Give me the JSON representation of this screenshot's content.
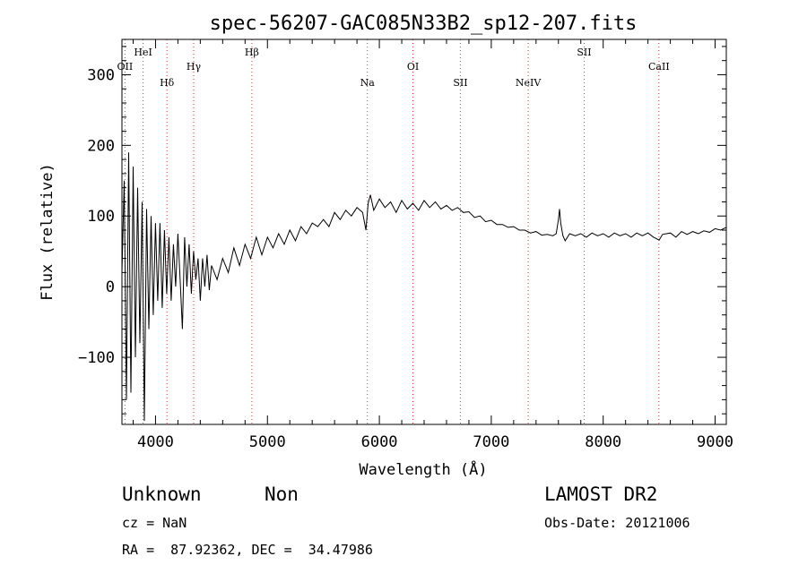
{
  "chart_data": {
    "type": "line",
    "title": "spec-56207-GAC085N33B2_sp12-207.fits",
    "xlabel": "Wavelength (Å)",
    "ylabel": "Flux (relative)",
    "xlim": [
      3700,
      9100
    ],
    "ylim": [
      -195,
      350
    ],
    "xticks": [
      4000,
      5000,
      6000,
      7000,
      8000,
      9000
    ],
    "yticks": [
      -100,
      0,
      100,
      200,
      300
    ],
    "ytick_labels": [
      "−100",
      "0",
      "100",
      "200",
      "300"
    ],
    "grid": false,
    "line_ids": [
      {
        "label": "OII",
        "wavelength": 3727,
        "row": "low-left"
      },
      {
        "label": "HeI",
        "wavelength": 3889,
        "row": "top"
      },
      {
        "label": "Hδ",
        "wavelength": 4102,
        "row": "low"
      },
      {
        "label": "Hγ",
        "wavelength": 4341,
        "row": "mid"
      },
      {
        "label": "Hβ",
        "wavelength": 4861,
        "row": "top"
      },
      {
        "label": "Na",
        "wavelength": 5893,
        "row": "low"
      },
      {
        "label": "OI",
        "wavelength": 6300,
        "row": "mid"
      },
      {
        "label": "SII",
        "wavelength": 6724,
        "row": "low"
      },
      {
        "label": "NeIV",
        "wavelength": 7330,
        "row": "low"
      },
      {
        "label": "SII",
        "wavelength": 7830,
        "row": "top"
      },
      {
        "label": "CaII",
        "wavelength": 8498,
        "row": "mid"
      }
    ],
    "series": [
      {
        "points": [
          [
            3700,
            20
          ],
          [
            3720,
            150
          ],
          [
            3740,
            -160
          ],
          [
            3760,
            190
          ],
          [
            3780,
            -150
          ],
          [
            3800,
            170
          ],
          [
            3820,
            -100
          ],
          [
            3840,
            140
          ],
          [
            3860,
            -80
          ],
          [
            3880,
            120
          ],
          [
            3900,
            -190
          ],
          [
            3920,
            110
          ],
          [
            3940,
            -60
          ],
          [
            3960,
            100
          ],
          [
            3980,
            -40
          ],
          [
            4000,
            90
          ],
          [
            4020,
            -20
          ],
          [
            4040,
            90
          ],
          [
            4060,
            -30
          ],
          [
            4080,
            80
          ],
          [
            4100,
            -10
          ],
          [
            4120,
            70
          ],
          [
            4140,
            -20
          ],
          [
            4160,
            60
          ],
          [
            4180,
            0
          ],
          [
            4200,
            75
          ],
          [
            4220,
            10
          ],
          [
            4240,
            -60
          ],
          [
            4260,
            70
          ],
          [
            4280,
            0
          ],
          [
            4300,
            60
          ],
          [
            4320,
            -10
          ],
          [
            4340,
            50
          ],
          [
            4360,
            10
          ],
          [
            4380,
            40
          ],
          [
            4400,
            -20
          ],
          [
            4420,
            40
          ],
          [
            4440,
            0
          ],
          [
            4460,
            45
          ],
          [
            4480,
            -5
          ],
          [
            4500,
            30
          ],
          [
            4550,
            10
          ],
          [
            4600,
            40
          ],
          [
            4650,
            20
          ],
          [
            4700,
            55
          ],
          [
            4750,
            30
          ],
          [
            4800,
            60
          ],
          [
            4850,
            40
          ],
          [
            4900,
            70
          ],
          [
            4950,
            45
          ],
          [
            5000,
            70
          ],
          [
            5050,
            55
          ],
          [
            5100,
            75
          ],
          [
            5150,
            60
          ],
          [
            5200,
            80
          ],
          [
            5250,
            65
          ],
          [
            5300,
            85
          ],
          [
            5350,
            75
          ],
          [
            5400,
            90
          ],
          [
            5450,
            85
          ],
          [
            5500,
            95
          ],
          [
            5550,
            85
          ],
          [
            5600,
            105
          ],
          [
            5650,
            95
          ],
          [
            5700,
            108
          ],
          [
            5750,
            100
          ],
          [
            5800,
            112
          ],
          [
            5850,
            105
          ],
          [
            5880,
            80
          ],
          [
            5900,
            118
          ],
          [
            5920,
            130
          ],
          [
            5950,
            108
          ],
          [
            6000,
            124
          ],
          [
            6050,
            112
          ],
          [
            6100,
            120
          ],
          [
            6150,
            105
          ],
          [
            6200,
            122
          ],
          [
            6250,
            110
          ],
          [
            6300,
            118
          ],
          [
            6350,
            108
          ],
          [
            6400,
            122
          ],
          [
            6450,
            112
          ],
          [
            6500,
            120
          ],
          [
            6550,
            110
          ],
          [
            6600,
            115
          ],
          [
            6650,
            108
          ],
          [
            6700,
            112
          ],
          [
            6750,
            105
          ],
          [
            6800,
            106
          ],
          [
            6850,
            98
          ],
          [
            6900,
            100
          ],
          [
            6950,
            92
          ],
          [
            7000,
            94
          ],
          [
            7050,
            88
          ],
          [
            7100,
            88
          ],
          [
            7150,
            84
          ],
          [
            7200,
            85
          ],
          [
            7250,
            80
          ],
          [
            7300,
            80
          ],
          [
            7350,
            76
          ],
          [
            7400,
            78
          ],
          [
            7450,
            73
          ],
          [
            7500,
            74
          ],
          [
            7550,
            72
          ],
          [
            7580,
            75
          ],
          [
            7600,
            95
          ],
          [
            7610,
            110
          ],
          [
            7620,
            90
          ],
          [
            7640,
            72
          ],
          [
            7660,
            65
          ],
          [
            7700,
            75
          ],
          [
            7750,
            72
          ],
          [
            7800,
            75
          ],
          [
            7850,
            70
          ],
          [
            7900,
            76
          ],
          [
            7950,
            72
          ],
          [
            8000,
            75
          ],
          [
            8050,
            70
          ],
          [
            8100,
            76
          ],
          [
            8150,
            72
          ],
          [
            8200,
            75
          ],
          [
            8250,
            70
          ],
          [
            8300,
            76
          ],
          [
            8350,
            72
          ],
          [
            8400,
            76
          ],
          [
            8450,
            70
          ],
          [
            8500,
            66
          ],
          [
            8530,
            74
          ],
          [
            8600,
            76
          ],
          [
            8650,
            70
          ],
          [
            8700,
            78
          ],
          [
            8750,
            74
          ],
          [
            8800,
            78
          ],
          [
            8850,
            75
          ],
          [
            8900,
            79
          ],
          [
            8950,
            77
          ],
          [
            9000,
            82
          ],
          [
            9050,
            80
          ],
          [
            9100,
            84
          ]
        ]
      }
    ]
  },
  "info": {
    "classification": "Unknown",
    "subclass": "Non",
    "survey": "LAMOST DR2",
    "redshift": "cz = NaN",
    "obs_date": "Obs-Date: 20121006",
    "coords": "RA =  87.92362, DEC =  34.47986"
  }
}
